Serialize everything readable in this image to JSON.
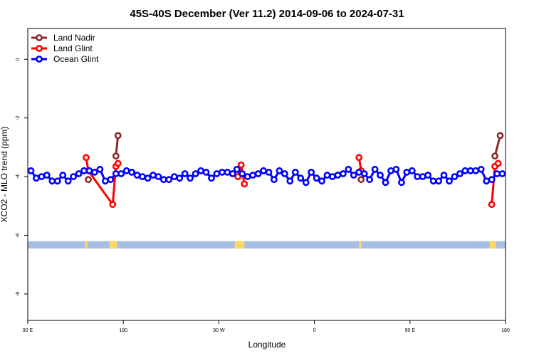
{
  "chart_data": {
    "type": "line",
    "title": "45S-40S December (Ver 11.2)   2014-09-06 to 2024-07-31",
    "xlabel": "Longitude",
    "ylabel": "XCO2 - MLO trend (ppm)",
    "x_ticks": [
      "90 E",
      "180",
      "90 W",
      "0",
      "90 E",
      "180"
    ],
    "x_tick_values": [
      90,
      180,
      270,
      360,
      450,
      540
    ],
    "y_ticks": [
      "0",
      "-2",
      "-4",
      "-6",
      "-8"
    ],
    "y_tick_values": [
      0,
      -2,
      -4,
      -6,
      -8
    ],
    "xlim": [
      90,
      540
    ],
    "ylim": [
      -8.9,
      1.05
    ],
    "grid": false,
    "legend_position": "top-left",
    "series": [
      {
        "name": "Land Nadir",
        "color": "#8b2a2a",
        "segments": [
          [
            {
              "x": 147,
              "y": -4.1
            }
          ],
          [
            {
              "x": 173,
              "y": -3.3
            },
            {
              "x": 175,
              "y": -2.6
            }
          ],
          [
            {
              "x": 404,
              "y": -4.1
            }
          ],
          [
            {
              "x": 530,
              "y": -3.3
            },
            {
              "x": 535,
              "y": -2.6
            }
          ]
        ]
      },
      {
        "name": "Land Glint",
        "color": "#ff0000",
        "segments": [
          [
            {
              "x": 145,
              "y": -3.35
            },
            {
              "x": 147,
              "y": -3.8
            },
            {
              "x": 170,
              "y": -4.95
            },
            {
              "x": 173,
              "y": -3.65
            },
            {
              "x": 175,
              "y": -3.55
            }
          ],
          [
            {
              "x": 288,
              "y": -4.0
            },
            {
              "x": 291,
              "y": -3.6
            },
            {
              "x": 294,
              "y": -4.25
            }
          ],
          [
            {
              "x": 402,
              "y": -3.35
            },
            {
              "x": 404,
              "y": -3.8
            }
          ],
          [
            {
              "x": 527,
              "y": -4.95
            },
            {
              "x": 530,
              "y": -3.65
            },
            {
              "x": 533,
              "y": -3.55
            }
          ]
        ]
      },
      {
        "name": "Ocean Glint",
        "color": "#0000ff",
        "segments": [
          [
            {
              "x": 93,
              "y": -3.8
            },
            {
              "x": 98,
              "y": -4.05
            },
            {
              "x": 103,
              "y": -4.0
            },
            {
              "x": 108,
              "y": -3.95
            },
            {
              "x": 113,
              "y": -4.15
            },
            {
              "x": 118,
              "y": -4.15
            },
            {
              "x": 123,
              "y": -3.95
            },
            {
              "x": 128,
              "y": -4.15
            },
            {
              "x": 133,
              "y": -4.0
            },
            {
              "x": 138,
              "y": -3.9
            },
            {
              "x": 143,
              "y": -3.8
            },
            {
              "x": 148,
              "y": -3.8
            },
            {
              "x": 153,
              "y": -3.85
            },
            {
              "x": 158,
              "y": -3.75
            },
            {
              "x": 163,
              "y": -4.15
            },
            {
              "x": 168,
              "y": -4.1
            },
            {
              "x": 173,
              "y": -3.9
            },
            {
              "x": 178,
              "y": -3.9
            },
            {
              "x": 183,
              "y": -3.8
            },
            {
              "x": 188,
              "y": -3.85
            },
            {
              "x": 193,
              "y": -3.95
            },
            {
              "x": 198,
              "y": -4.0
            },
            {
              "x": 203,
              "y": -4.05
            },
            {
              "x": 208,
              "y": -3.95
            },
            {
              "x": 213,
              "y": -4.0
            },
            {
              "x": 218,
              "y": -4.1
            },
            {
              "x": 223,
              "y": -4.1
            },
            {
              "x": 228,
              "y": -4.0
            },
            {
              "x": 233,
              "y": -4.05
            },
            {
              "x": 238,
              "y": -3.9
            },
            {
              "x": 243,
              "y": -4.05
            },
            {
              "x": 248,
              "y": -3.9
            },
            {
              "x": 253,
              "y": -3.8
            },
            {
              "x": 258,
              "y": -3.85
            },
            {
              "x": 263,
              "y": -4.05
            },
            {
              "x": 268,
              "y": -3.9
            },
            {
              "x": 273,
              "y": -3.85
            },
            {
              "x": 278,
              "y": -3.85
            },
            {
              "x": 283,
              "y": -3.9
            },
            {
              "x": 287,
              "y": -3.75
            },
            {
              "x": 292,
              "y": -3.9
            },
            {
              "x": 297,
              "y": -4.0
            },
            {
              "x": 302,
              "y": -3.95
            },
            {
              "x": 307,
              "y": -3.9
            },
            {
              "x": 312,
              "y": -3.8
            },
            {
              "x": 317,
              "y": -3.85
            },
            {
              "x": 322,
              "y": -4.1
            },
            {
              "x": 327,
              "y": -3.8
            },
            {
              "x": 332,
              "y": -3.9
            },
            {
              "x": 337,
              "y": -4.15
            },
            {
              "x": 342,
              "y": -3.85
            },
            {
              "x": 347,
              "y": -4.05
            },
            {
              "x": 352,
              "y": -4.2
            },
            {
              "x": 357,
              "y": -3.85
            },
            {
              "x": 362,
              "y": -4.05
            },
            {
              "x": 367,
              "y": -4.15
            },
            {
              "x": 372,
              "y": -3.95
            },
            {
              "x": 377,
              "y": -4.0
            },
            {
              "x": 382,
              "y": -3.95
            },
            {
              "x": 387,
              "y": -3.9
            },
            {
              "x": 392,
              "y": -3.75
            },
            {
              "x": 397,
              "y": -3.95
            },
            {
              "x": 402,
              "y": -3.85
            },
            {
              "x": 407,
              "y": -3.9
            },
            {
              "x": 412,
              "y": -4.1
            },
            {
              "x": 417,
              "y": -3.75
            },
            {
              "x": 422,
              "y": -3.95
            },
            {
              "x": 427,
              "y": -4.2
            },
            {
              "x": 432,
              "y": -3.8
            },
            {
              "x": 437,
              "y": -3.75
            },
            {
              "x": 442,
              "y": -4.2
            },
            {
              "x": 447,
              "y": -3.85
            },
            {
              "x": 452,
              "y": -3.8
            },
            {
              "x": 457,
              "y": -4.0
            },
            {
              "x": 462,
              "y": -4.0
            },
            {
              "x": 467,
              "y": -3.95
            },
            {
              "x": 472,
              "y": -4.15
            },
            {
              "x": 477,
              "y": -4.15
            },
            {
              "x": 482,
              "y": -3.95
            },
            {
              "x": 487,
              "y": -4.15
            },
            {
              "x": 492,
              "y": -4.0
            },
            {
              "x": 497,
              "y": -3.9
            },
            {
              "x": 502,
              "y": -3.8
            },
            {
              "x": 507,
              "y": -3.8
            },
            {
              "x": 512,
              "y": -3.8
            },
            {
              "x": 517,
              "y": -3.75
            },
            {
              "x": 522,
              "y": -4.15
            },
            {
              "x": 527,
              "y": -4.1
            },
            {
              "x": 532,
              "y": -3.9
            },
            {
              "x": 537,
              "y": -3.9
            }
          ]
        ]
      }
    ],
    "surface_strip": {
      "y_range": [
        -6.45,
        -6.2
      ],
      "ocean_color": "#a7bfe3",
      "land_color": "#fbd964",
      "land_x_ranges": [
        [
          144,
          146
        ],
        [
          167,
          174
        ],
        [
          285,
          294
        ],
        [
          402,
          404
        ],
        [
          525,
          531
        ]
      ]
    }
  }
}
